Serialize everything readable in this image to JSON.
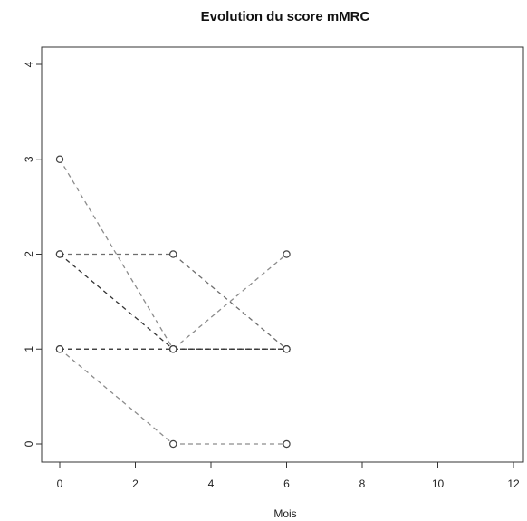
{
  "chart_data": {
    "type": "line",
    "title": "Evolution du score mMRC",
    "xlabel": "Mois",
    "ylabel": "",
    "xlim": [
      0,
      12
    ],
    "ylim": [
      0,
      4
    ],
    "xticks": [
      0,
      2,
      4,
      6,
      8,
      10,
      12
    ],
    "yticks": [
      0,
      1,
      2,
      3,
      4
    ],
    "grid": false,
    "line_style": "dashed",
    "marker": "open-circle",
    "series": [
      {
        "x": [
          0,
          3,
          6
        ],
        "y": [
          3,
          1,
          1
        ],
        "color": "#8c8c8c"
      },
      {
        "x": [
          0,
          3,
          6
        ],
        "y": [
          2,
          1,
          1
        ],
        "color": "#333333"
      },
      {
        "x": [
          0,
          3,
          6
        ],
        "y": [
          2,
          2,
          1
        ],
        "color": "#6e6e6e"
      },
      {
        "x": [
          0,
          3,
          6
        ],
        "y": [
          1,
          1,
          2
        ],
        "color": "#8c8c8c"
      },
      {
        "x": [
          0,
          3,
          6
        ],
        "y": [
          1,
          0,
          0
        ],
        "color": "#8c8c8c"
      },
      {
        "x": [
          0,
          3,
          6
        ],
        "y": [
          1,
          1,
          1
        ],
        "color": "#333333"
      }
    ]
  }
}
